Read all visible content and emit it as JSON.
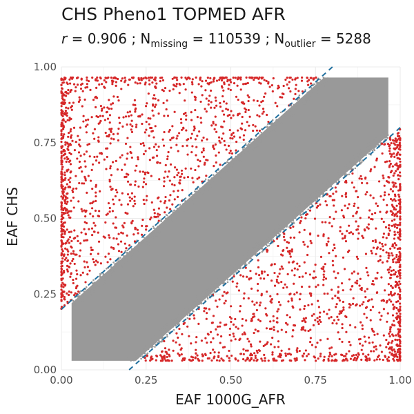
{
  "chart_data": {
    "type": "scatter",
    "title": "CHS Pheno1 TOPMED AFR",
    "subtitle": {
      "r_symbol": "r",
      "r_text": " = 0.906 ; N",
      "missing_sub": "missing",
      "missing_text": " = 110539 ; N",
      "outlier_sub": "outlier",
      "outlier_text": " = 5288"
    },
    "xlabel": "EAF 1000G_AFR",
    "ylabel": "EAF CHS",
    "xlim": [
      0,
      1
    ],
    "ylim": [
      0,
      1
    ],
    "x_ticks": [
      "0.00",
      "0.25",
      "0.50",
      "0.75",
      "1.00"
    ],
    "y_ticks": [
      "0.00",
      "0.25",
      "0.50",
      "0.75",
      "1.00"
    ],
    "grid": true,
    "legend": "none",
    "series": [
      {
        "role": "inlier",
        "color": "#999999",
        "band_halfwidth": 0.2,
        "eaf_range": [
          0.03,
          0.965
        ],
        "shape": "dense point cloud along y = x"
      },
      {
        "role": "outlier",
        "color": "#d62728",
        "count": 5288,
        "shape": "points outside the |y - x| > 0.2 band"
      }
    ],
    "reference_lines": [
      {
        "slope": 1,
        "intercept": 0.2,
        "style": "dashed",
        "color": "#1f6f9e"
      },
      {
        "slope": 1,
        "intercept": -0.2,
        "style": "dashed",
        "color": "#1f6f9e"
      }
    ]
  }
}
